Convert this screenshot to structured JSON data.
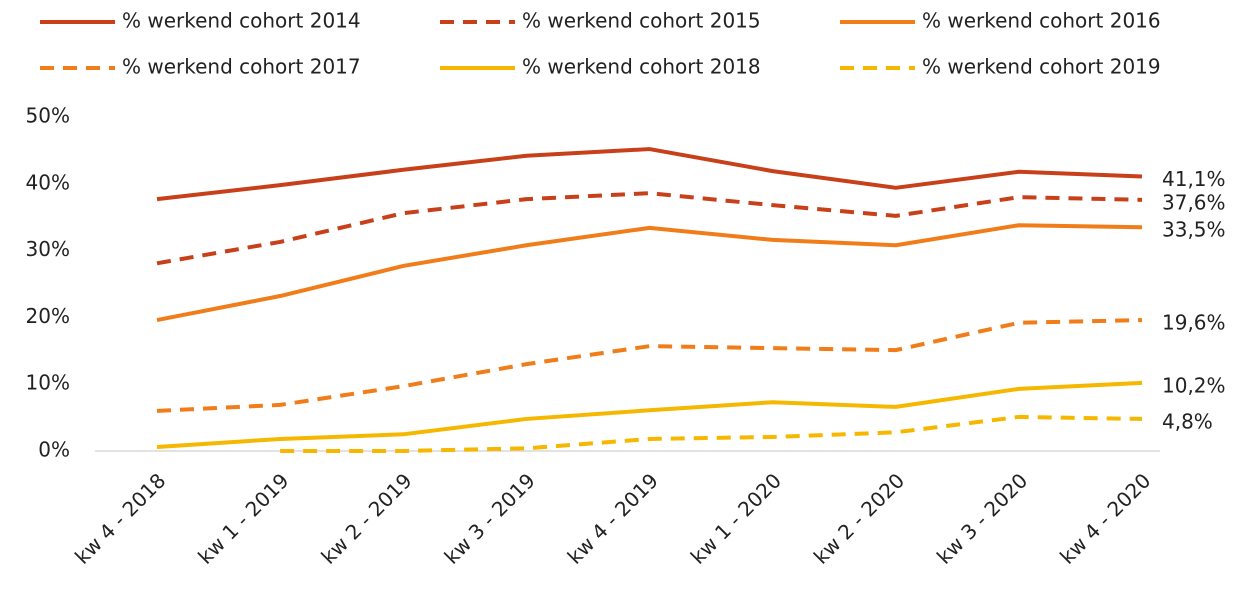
{
  "chart_data": {
    "type": "line",
    "categories": [
      "kw 4 - 2018",
      "kw 1 - 2019",
      "kw 2 - 2019",
      "kw 3 - 2019",
      "kw 4 - 2019",
      "kw 1 - 2020",
      "kw 2 - 2020",
      "kw 3 - 2020",
      "kw 4 - 2020"
    ],
    "series": [
      {
        "name": "% werkend cohort 2014",
        "color": "#c8401a",
        "dashed": false,
        "values": [
          37.7,
          39.8,
          42.1,
          44.2,
          45.2,
          41.9,
          39.4,
          41.8,
          41.1
        ],
        "value_labels": [
          null,
          null,
          null,
          null,
          null,
          null,
          null,
          null,
          "41,1%"
        ]
      },
      {
        "name": "% werkend cohort 2015",
        "color": "#c8401a",
        "dashed": true,
        "values": [
          28.1,
          31.3,
          35.6,
          37.7,
          38.6,
          36.8,
          35.2,
          38.0,
          37.6
        ],
        "value_labels": [
          null,
          null,
          null,
          null,
          null,
          null,
          null,
          null,
          "37,6%"
        ]
      },
      {
        "name": "% werkend cohort 2016",
        "color": "#f07d19",
        "dashed": false,
        "values": [
          19.6,
          23.2,
          27.7,
          30.8,
          33.4,
          31.6,
          30.8,
          33.8,
          33.5
        ],
        "value_labels": [
          null,
          null,
          null,
          null,
          null,
          null,
          null,
          null,
          "33,5%"
        ]
      },
      {
        "name": "% werkend cohort 2017",
        "color": "#f07d19",
        "dashed": true,
        "values": [
          6.0,
          6.9,
          9.7,
          13.0,
          15.7,
          15.4,
          15.1,
          19.2,
          19.6
        ],
        "value_labels": [
          null,
          null,
          null,
          null,
          null,
          null,
          null,
          null,
          "19,6%"
        ]
      },
      {
        "name": "% werkend cohort 2018",
        "color": "#f5b700",
        "dashed": false,
        "values": [
          0.6,
          1.8,
          2.5,
          4.8,
          6.1,
          7.3,
          6.6,
          9.3,
          10.2
        ],
        "value_labels": [
          null,
          null,
          null,
          null,
          null,
          null,
          null,
          null,
          "10,2%"
        ]
      },
      {
        "name": "% werkend cohort 2019",
        "color": "#f5b700",
        "dashed": true,
        "values": [
          null,
          0,
          0,
          0.4,
          1.8,
          2.1,
          2.8,
          5.1,
          4.8
        ],
        "value_labels": [
          null,
          null,
          null,
          null,
          null,
          null,
          null,
          null,
          "4,8%"
        ]
      }
    ],
    "ylim": [
      0,
      50
    ],
    "yticks": [
      {
        "value": 0,
        "label": "0%"
      },
      {
        "value": 10,
        "label": "10%"
      },
      {
        "value": 20,
        "label": "20%"
      },
      {
        "value": 30,
        "label": "30%"
      },
      {
        "value": 40,
        "label": "40%"
      },
      {
        "value": 50,
        "label": "50%"
      }
    ],
    "grid": false,
    "legend": "top"
  }
}
